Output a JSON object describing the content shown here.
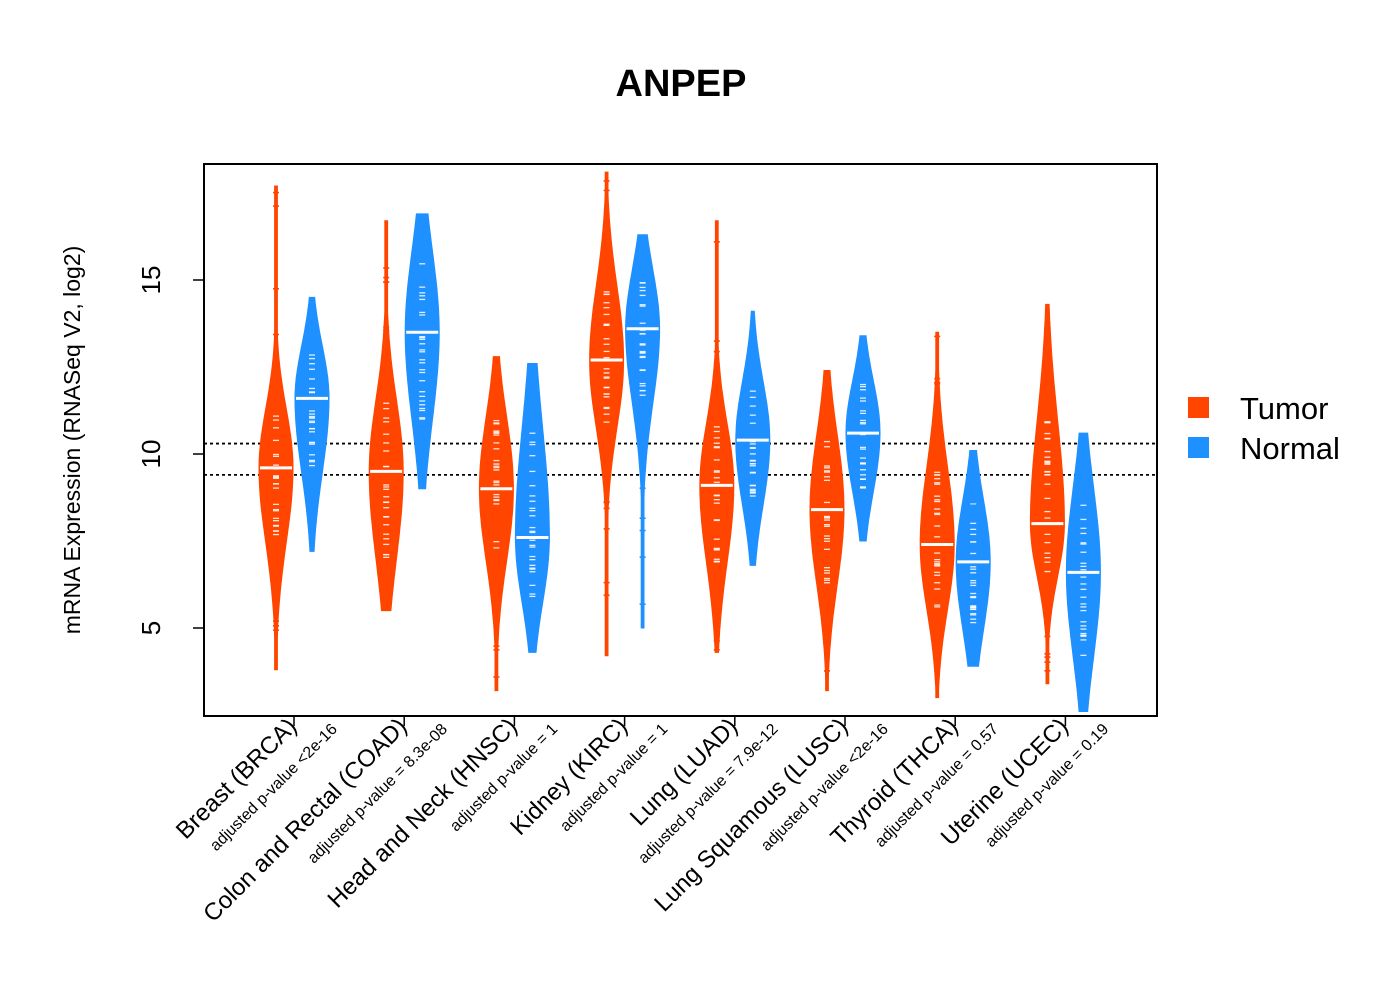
{
  "chart_data": {
    "type": "violin",
    "title": "ANPEP",
    "ylabel": "mRNA Expression (RNASeq V2, log2)",
    "ylim": [
      2.5,
      18.3
    ],
    "yticks": [
      5,
      10,
      15
    ],
    "reference_lines": [
      9.4,
      10.3
    ],
    "legend": {
      "position": "right",
      "entries": [
        {
          "name": "Tumor",
          "color": "#FF4500"
        },
        {
          "name": "Normal",
          "color": "#1E90FF"
        }
      ]
    },
    "colors": {
      "tumor": "#FF4500",
      "normal": "#1E90FF"
    },
    "categories": [
      {
        "name": "Breast (BRCA)",
        "pvalue_label": "adjusted p-value <2e-16",
        "tumor": {
          "min": 3.8,
          "max": 17.7,
          "median": 9.6,
          "core_low": 7.5,
          "core_high": 11.2
        },
        "normal": {
          "min": 7.2,
          "max": 14.5,
          "median": 11.6,
          "core_low": 9.5,
          "core_high": 13.0
        }
      },
      {
        "name": "Colon and Rectal (COAD)",
        "pvalue_label": "adjusted p-value = 8.3e-08",
        "tumor": {
          "min": 5.5,
          "max": 16.7,
          "median": 9.5,
          "core_low": 7.0,
          "core_high": 11.5
        },
        "normal": {
          "min": 9.0,
          "max": 16.9,
          "median": 13.5,
          "core_low": 11.0,
          "core_high": 15.8
        }
      },
      {
        "name": "Head and Neck (HNSC)",
        "pvalue_label": "adjusted p-value = 1",
        "tumor": {
          "min": 3.2,
          "max": 12.8,
          "median": 9.0,
          "core_low": 7.0,
          "core_high": 11.0
        },
        "normal": {
          "min": 4.3,
          "max": 12.6,
          "median": 7.6,
          "core_low": 5.8,
          "core_high": 10.8
        }
      },
      {
        "name": "Kidney (KIRC)",
        "pvalue_label": "adjusted p-value = 1",
        "tumor": {
          "min": 4.2,
          "max": 18.1,
          "median": 12.7,
          "core_low": 10.8,
          "core_high": 14.8
        },
        "normal": {
          "min": 5.0,
          "max": 16.3,
          "median": 13.6,
          "core_low": 11.5,
          "core_high": 15.2
        }
      },
      {
        "name": "Lung (LUAD)",
        "pvalue_label": "adjusted p-value = 7.9e-12",
        "tumor": {
          "min": 4.3,
          "max": 16.7,
          "median": 9.1,
          "core_low": 6.9,
          "core_high": 10.8
        },
        "normal": {
          "min": 6.8,
          "max": 14.1,
          "median": 10.4,
          "core_low": 8.6,
          "core_high": 12.0
        }
      },
      {
        "name": "Lung Squamous (LUSC)",
        "pvalue_label": "adjusted p-value <2e-16",
        "tumor": {
          "min": 3.2,
          "max": 12.4,
          "median": 8.4,
          "core_low": 6.3,
          "core_high": 10.5
        },
        "normal": {
          "min": 7.5,
          "max": 13.4,
          "median": 10.6,
          "core_low": 9.0,
          "core_high": 12.0
        }
      },
      {
        "name": "Thyroid (THCA)",
        "pvalue_label": "adjusted p-value = 0.57",
        "tumor": {
          "min": 3.0,
          "max": 13.5,
          "median": 7.4,
          "core_low": 5.6,
          "core_high": 9.6
        },
        "normal": {
          "min": 3.9,
          "max": 10.1,
          "median": 6.9,
          "core_low": 5.0,
          "core_high": 8.6
        }
      },
      {
        "name": "Uterine (UCEC)",
        "pvalue_label": "adjusted p-value = 0.19",
        "tumor": {
          "min": 3.4,
          "max": 14.3,
          "median": 8.0,
          "core_low": 6.6,
          "core_high": 11.0
        },
        "normal": {
          "min": 2.6,
          "max": 10.6,
          "median": 6.6,
          "core_low": 4.2,
          "core_high": 9.0
        }
      }
    ]
  }
}
